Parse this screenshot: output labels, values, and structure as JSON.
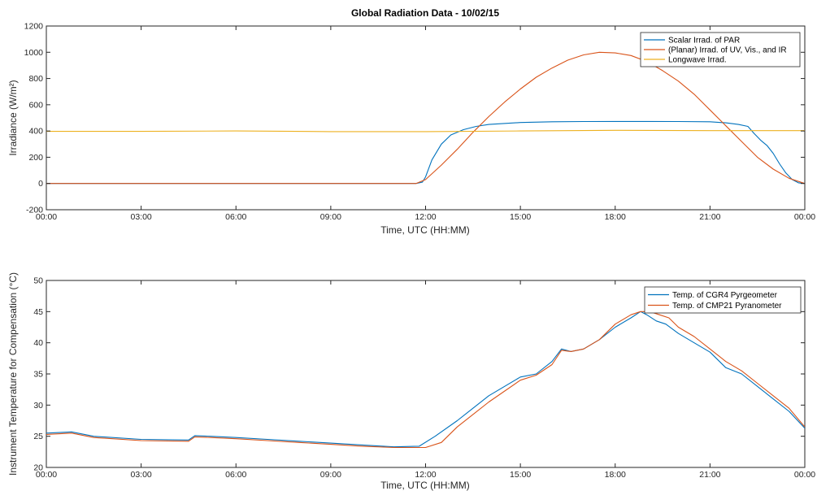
{
  "chart_data": [
    {
      "type": "line",
      "title": "Global Radiation Data - 10/02/15",
      "xlabel": "Time, UTC (HH:MM)",
      "ylabel": "Irradiance (W/m²)",
      "xlim": [
        0,
        24
      ],
      "ylim": [
        -200,
        1200
      ],
      "xticks": [
        0,
        3,
        6,
        9,
        12,
        15,
        18,
        21,
        24
      ],
      "xtick_labels": [
        "00:00",
        "03:00",
        "06:00",
        "09:00",
        "12:00",
        "15:00",
        "18:00",
        "21:00",
        "00:00"
      ],
      "yticks": [
        -200,
        0,
        200,
        400,
        600,
        800,
        1000,
        1200
      ],
      "legend_position": "top-right",
      "grid": false,
      "series": [
        {
          "name": "Scalar Irrad. of PAR",
          "color": "#0072BD",
          "x": [
            0,
            6,
            11.7,
            11.9,
            12.0,
            12.2,
            12.5,
            12.8,
            13.2,
            13.6,
            14.0,
            15.0,
            16.0,
            17.0,
            18.0,
            19.0,
            20.0,
            21.0,
            21.5,
            21.9,
            22.2,
            22.4,
            22.6,
            22.8,
            23.0,
            23.2,
            23.4,
            23.6,
            23.8,
            24.0
          ],
          "y": [
            0,
            0,
            0,
            10,
            50,
            180,
            300,
            370,
            410,
            435,
            450,
            465,
            470,
            472,
            473,
            473,
            472,
            470,
            462,
            450,
            435,
            380,
            330,
            290,
            230,
            150,
            80,
            30,
            5,
            0
          ]
        },
        {
          "name": "(Planar) Irrad. of UV, Vis., and IR",
          "color": "#D95319",
          "x": [
            0,
            6,
            11.7,
            12.0,
            12.5,
            13.0,
            13.5,
            14.0,
            14.5,
            15.0,
            15.5,
            16.0,
            16.5,
            17.0,
            17.5,
            18.0,
            18.5,
            19.0,
            19.5,
            20.0,
            20.5,
            21.0,
            21.5,
            22.0,
            22.5,
            23.0,
            23.5,
            24.0
          ],
          "y": [
            0,
            0,
            0,
            30,
            140,
            260,
            390,
            510,
            620,
            720,
            810,
            880,
            940,
            980,
            1000,
            995,
            975,
            930,
            860,
            780,
            680,
            560,
            440,
            320,
            200,
            110,
            40,
            0
          ]
        },
        {
          "name": "Longwave Irrad.",
          "color": "#EDB120",
          "x": [
            0,
            3,
            6,
            9,
            12,
            15,
            18,
            21,
            24
          ],
          "y": [
            397,
            397,
            400,
            395,
            395,
            400,
            405,
            403,
            403
          ]
        }
      ]
    },
    {
      "type": "line",
      "title": "",
      "xlabel": "Time, UTC (HH:MM)",
      "ylabel": "Instrument Temperature for Compensation (°C)",
      "xlim": [
        0,
        24
      ],
      "ylim": [
        20,
        50
      ],
      "xticks": [
        0,
        3,
        6,
        9,
        12,
        15,
        18,
        21,
        24
      ],
      "xtick_labels": [
        "00:00",
        "03:00",
        "06:00",
        "09:00",
        "12:00",
        "15:00",
        "18:00",
        "21:00",
        "00:00"
      ],
      "yticks": [
        20,
        25,
        30,
        35,
        40,
        45,
        50
      ],
      "legend_position": "top-right",
      "grid": false,
      "series": [
        {
          "name": "Temp. of CGR4 Pyrgeometer",
          "color": "#0072BD",
          "x": [
            0,
            0.8,
            1.5,
            3,
            4.5,
            4.7,
            5.2,
            6,
            7,
            8,
            9,
            10,
            11,
            11.8,
            12.3,
            13,
            14,
            15,
            15.5,
            16.0,
            16.3,
            16.6,
            17.0,
            17.5,
            18.0,
            18.5,
            18.8,
            19.0,
            19.3,
            19.6,
            20.0,
            20.5,
            21.0,
            21.5,
            22.0,
            22.5,
            23.0,
            23.5,
            24.0
          ],
          "y": [
            25.5,
            25.7,
            25.0,
            24.5,
            24.4,
            25.1,
            25.0,
            24.8,
            24.5,
            24.2,
            23.9,
            23.6,
            23.3,
            23.4,
            25.0,
            27.5,
            31.5,
            34.5,
            35.0,
            37.0,
            39.0,
            38.6,
            39.0,
            40.5,
            42.5,
            44.0,
            45.0,
            44.5,
            43.5,
            43.0,
            41.5,
            40.0,
            38.5,
            36.0,
            35.0,
            33.0,
            31.0,
            29.0,
            26.3
          ]
        },
        {
          "name": "Temp. of CMP21 Pyranometer",
          "color": "#D95319",
          "x": [
            0,
            0.8,
            1.5,
            3,
            4.5,
            4.7,
            5.2,
            6,
            7,
            8,
            9,
            10,
            11,
            12.0,
            12.5,
            13,
            14,
            15,
            15.5,
            16.0,
            16.3,
            16.6,
            17.0,
            17.5,
            18.0,
            18.5,
            18.8,
            19.1,
            19.4,
            19.7,
            20.0,
            20.5,
            21.0,
            21.5,
            22.0,
            22.5,
            23.0,
            23.5,
            24.0
          ],
          "y": [
            25.3,
            25.5,
            24.8,
            24.3,
            24.2,
            24.9,
            24.8,
            24.6,
            24.3,
            24.0,
            23.7,
            23.4,
            23.2,
            23.2,
            24.0,
            26.5,
            30.5,
            34.0,
            34.8,
            36.5,
            38.8,
            38.6,
            39.0,
            40.5,
            43.0,
            44.5,
            45.0,
            45.0,
            44.5,
            44.0,
            42.5,
            41.0,
            39.0,
            37.0,
            35.5,
            33.5,
            31.5,
            29.5,
            26.5
          ]
        }
      ]
    }
  ]
}
